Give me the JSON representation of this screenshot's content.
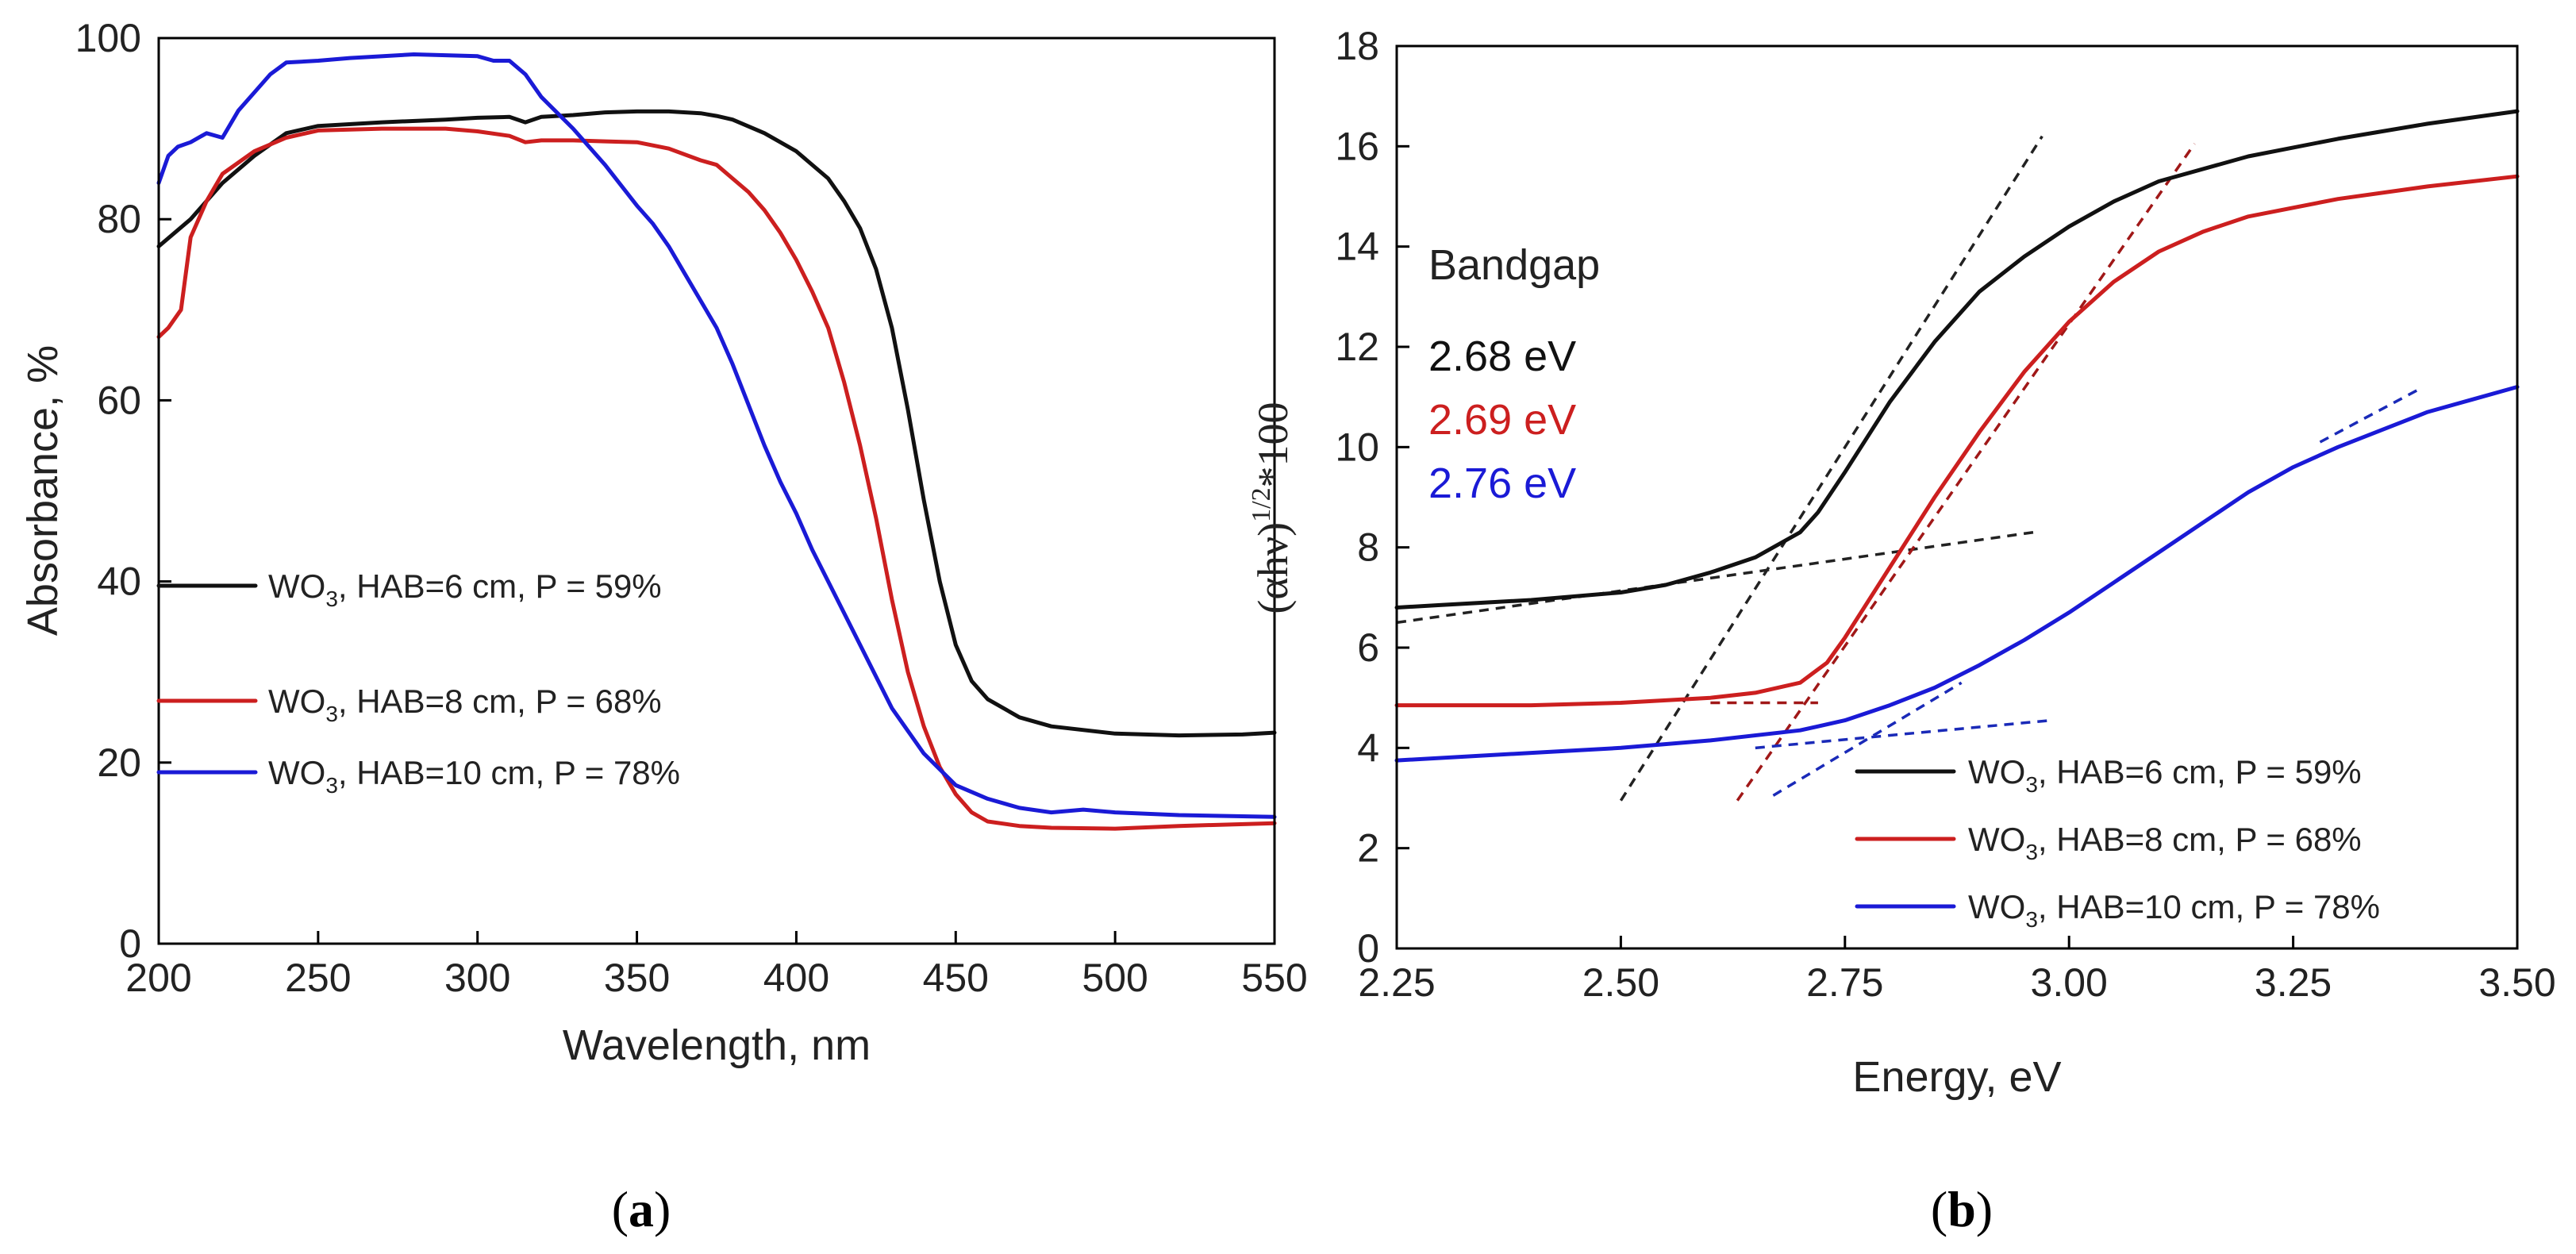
{
  "colors": {
    "black": "#111111",
    "red": "#cc1f1f",
    "blue": "#1a1ad6",
    "fit_black": "#222222",
    "fit_red": "#a01818",
    "fit_blue": "#1a2ab8"
  },
  "chart_data": [
    {
      "type": "line",
      "panel_label": "a",
      "title": "",
      "xlabel": "Wavelength, nm",
      "ylabel": "Absorbance, %",
      "xlim": [
        200,
        550
      ],
      "ylim": [
        0,
        100
      ],
      "xticks": [
        200,
        250,
        300,
        350,
        400,
        450,
        500,
        550
      ],
      "yticks": [
        0,
        20,
        40,
        60,
        80,
        100
      ],
      "legend_position": "lower-left",
      "series": [
        {
          "name_main": "WO",
          "name_sub": "3",
          "name_rest": ", HAB=6 cm, P = 59%",
          "color": "#111111",
          "x": [
            200,
            210,
            220,
            230,
            240,
            250,
            270,
            290,
            300,
            310,
            315,
            320,
            330,
            340,
            350,
            360,
            370,
            375,
            380,
            390,
            400,
            410,
            415,
            420,
            425,
            430,
            435,
            440,
            445,
            450,
            455,
            460,
            470,
            480,
            500,
            520,
            540,
            550
          ],
          "y": [
            77,
            80,
            84,
            87,
            89.5,
            90.3,
            90.7,
            91,
            91.2,
            91.3,
            90.7,
            91.3,
            91.5,
            91.8,
            91.9,
            91.9,
            91.7,
            91.4,
            91,
            89.5,
            87.5,
            84.5,
            82,
            79,
            74.5,
            68,
            59,
            49,
            40,
            33,
            29,
            27,
            25,
            24,
            23.2,
            23,
            23.1,
            23.3
          ]
        },
        {
          "name_main": "WO",
          "name_sub": "3",
          "name_rest": ", HAB=8 cm, P = 68%",
          "color": "#cc1f1f",
          "x": [
            200,
            203,
            207,
            210,
            215,
            220,
            230,
            240,
            250,
            270,
            290,
            300,
            310,
            315,
            320,
            330,
            340,
            350,
            360,
            370,
            375,
            380,
            385,
            390,
            395,
            400,
            405,
            410,
            415,
            420,
            425,
            430,
            435,
            440,
            445,
            450,
            455,
            460,
            470,
            480,
            500,
            520,
            550
          ],
          "y": [
            67,
            68,
            70,
            78,
            82,
            85,
            87.5,
            89,
            89.8,
            90,
            90,
            89.7,
            89.2,
            88.5,
            88.7,
            88.7,
            88.6,
            88.5,
            87.8,
            86.5,
            86,
            84.5,
            83,
            81,
            78.5,
            75.5,
            72,
            68,
            62,
            55,
            47,
            38,
            30,
            24,
            19.5,
            16.5,
            14.5,
            13.5,
            13,
            12.8,
            12.7,
            13,
            13.3
          ]
        },
        {
          "name_main": "WO",
          "name_sub": "3",
          "name_rest": ", HAB=10 cm, P = 78%",
          "color": "#1a1ad6",
          "x": [
            200,
            203,
            206,
            210,
            215,
            220,
            225,
            230,
            235,
            240,
            250,
            260,
            280,
            300,
            305,
            310,
            315,
            320,
            330,
            340,
            350,
            355,
            360,
            365,
            370,
            375,
            380,
            385,
            390,
            395,
            400,
            405,
            410,
            420,
            430,
            440,
            450,
            460,
            470,
            480,
            490,
            500,
            520,
            550
          ],
          "y": [
            84,
            87,
            88,
            88.5,
            89.5,
            89,
            92,
            94,
            96,
            97.3,
            97.5,
            97.8,
            98.2,
            98,
            97.5,
            97.5,
            96,
            93.5,
            90,
            86,
            81.5,
            79.5,
            77,
            74,
            71,
            68,
            64,
            59.5,
            55,
            51,
            47.5,
            43.5,
            40,
            33,
            26,
            21,
            17.5,
            16,
            15,
            14.5,
            14.8,
            14.5,
            14.2,
            14
          ]
        }
      ]
    },
    {
      "type": "line",
      "panel_label": "b",
      "title": "",
      "xlabel": "Energy, eV",
      "ylabel_main": "(αhν)",
      "ylabel_sup": "1/2",
      "ylabel_rest": "*100",
      "xlim": [
        2.25,
        3.5
      ],
      "ylim": [
        0,
        18
      ],
      "xticks": [
        "2.25",
        "2.50",
        "2.75",
        "3.00",
        "3.25",
        "3.50"
      ],
      "yticks": [
        0,
        2,
        4,
        6,
        8,
        10,
        12,
        14,
        16,
        18
      ],
      "legend_position": "lower-right",
      "annotation": {
        "title": "Bandgap",
        "values": [
          {
            "text": "2.68 eV",
            "color": "#111111"
          },
          {
            "text": "2.69 eV",
            "color": "#cc1f1f"
          },
          {
            "text": "2.76 eV",
            "color": "#1a1ad6"
          }
        ]
      },
      "series": [
        {
          "name_main": "WO",
          "name_sub": "3",
          "name_rest": ", HAB=6 cm, P = 59%",
          "color": "#111111",
          "x": [
            2.25,
            2.3,
            2.4,
            2.5,
            2.55,
            2.6,
            2.65,
            2.7,
            2.72,
            2.75,
            2.8,
            2.85,
            2.9,
            2.95,
            3.0,
            3.05,
            3.1,
            3.2,
            3.3,
            3.4,
            3.5
          ],
          "y": [
            6.8,
            6.85,
            6.95,
            7.1,
            7.25,
            7.5,
            7.8,
            8.3,
            8.7,
            9.5,
            10.9,
            12.1,
            13.1,
            13.8,
            14.4,
            14.9,
            15.3,
            15.8,
            16.15,
            16.45,
            16.7
          ]
        },
        {
          "name_main": "WO",
          "name_sub": "3",
          "name_rest": ", HAB=8 cm, P = 68%",
          "color": "#cc1f1f",
          "x": [
            2.25,
            2.4,
            2.5,
            2.6,
            2.65,
            2.7,
            2.73,
            2.75,
            2.8,
            2.85,
            2.9,
            2.95,
            3.0,
            3.05,
            3.1,
            3.15,
            3.2,
            3.3,
            3.4,
            3.5
          ],
          "y": [
            4.85,
            4.85,
            4.9,
            5.0,
            5.1,
            5.3,
            5.7,
            6.2,
            7.6,
            9.0,
            10.3,
            11.5,
            12.5,
            13.3,
            13.9,
            14.3,
            14.6,
            14.95,
            15.2,
            15.4
          ]
        },
        {
          "name_main": "WO",
          "name_sub": "3",
          "name_rest": ", HAB=10 cm, P = 78%",
          "color": "#1a1ad6",
          "x": [
            2.25,
            2.4,
            2.5,
            2.6,
            2.7,
            2.75,
            2.8,
            2.85,
            2.9,
            2.95,
            3.0,
            3.05,
            3.1,
            3.15,
            3.2,
            3.25,
            3.3,
            3.35,
            3.4,
            3.45,
            3.5
          ],
          "y": [
            3.75,
            3.9,
            4.0,
            4.15,
            4.35,
            4.55,
            4.85,
            5.2,
            5.65,
            6.15,
            6.7,
            7.3,
            7.9,
            8.5,
            9.1,
            9.6,
            10.0,
            10.35,
            10.7,
            10.95,
            11.2
          ]
        }
      ],
      "fit_lines": [
        {
          "color": "#222222",
          "x": [
            2.5,
            2.97
          ],
          "y": [
            2.95,
            16.2
          ]
        },
        {
          "color": "#222222",
          "x": [
            2.25,
            2.96
          ],
          "y": [
            6.5,
            8.3
          ]
        },
        {
          "color": "#a01818",
          "x": [
            2.63,
            3.14
          ],
          "y": [
            2.95,
            16.05
          ]
        },
        {
          "color": "#a01818",
          "x": [
            2.6,
            2.72
          ],
          "y": [
            4.9,
            4.9
          ]
        },
        {
          "color": "#1a2ab8",
          "x": [
            2.67,
            2.88
          ],
          "y": [
            3.05,
            5.3
          ]
        },
        {
          "color": "#1a2ab8",
          "x": [
            2.65,
            2.98
          ],
          "y": [
            4.0,
            4.55
          ]
        },
        {
          "color": "#1a2ab8",
          "x": [
            3.28,
            3.39
          ],
          "y": [
            10.1,
            11.15
          ]
        }
      ]
    }
  ]
}
